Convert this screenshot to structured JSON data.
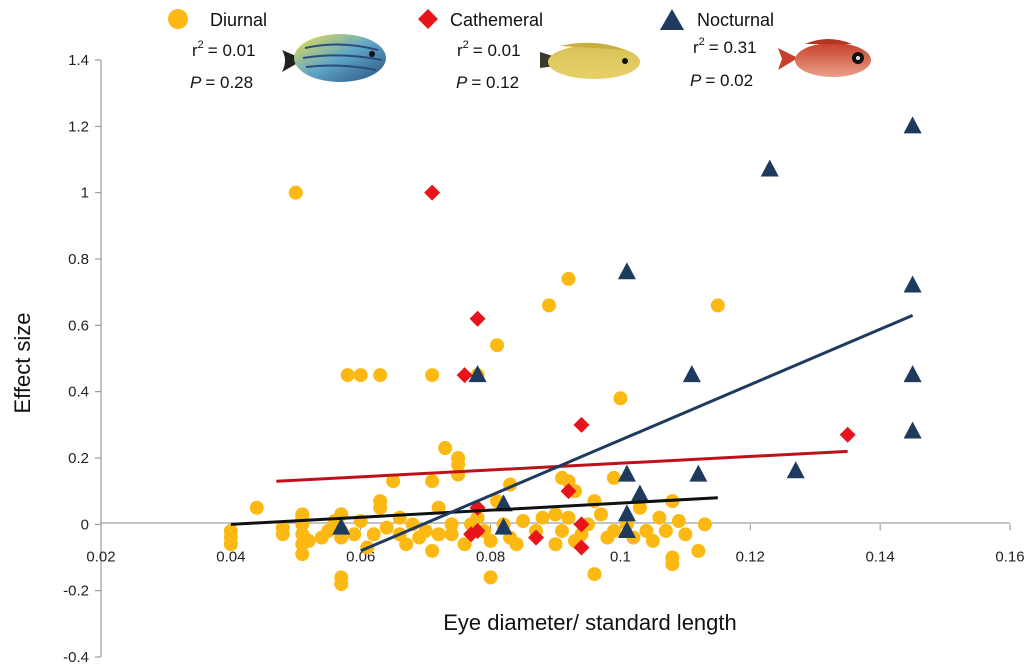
{
  "chart_data": {
    "type": "scatter",
    "xlabel": "Eye diameter/ standard length",
    "ylabel": "Effect size",
    "xlim": [
      0.02,
      0.16
    ],
    "ylim": [
      -0.4,
      1.4
    ],
    "x_ticks": [
      "0.02",
      "0.04",
      "0.06",
      "0.08",
      "0.1",
      "0.12",
      "0.14",
      "0.16"
    ],
    "y_ticks": [
      "-0.4",
      "-0.2",
      "0",
      "0.2",
      "0.4",
      "0.6",
      "0.8",
      "1",
      "1.2",
      "1.4"
    ],
    "grid": false,
    "legend_position": "top",
    "series": [
      {
        "name": "Diurnal",
        "marker": "circle",
        "color": "#FDB913",
        "line_color": "#111111",
        "r2_label": "r",
        "r2_value": "= 0.01",
        "p_label": "P",
        "p_value": "= 0.28",
        "trend": [
          [
            0.04,
            0.0
          ],
          [
            0.115,
            0.08
          ]
        ],
        "points": [
          [
            0.04,
            -0.04
          ],
          [
            0.04,
            -0.06
          ],
          [
            0.04,
            -0.02
          ],
          [
            0.044,
            0.05
          ],
          [
            0.048,
            -0.03
          ],
          [
            0.048,
            -0.01
          ],
          [
            0.05,
            1.0
          ],
          [
            0.051,
            -0.03
          ],
          [
            0.051,
            -0.06
          ],
          [
            0.051,
            -0.09
          ],
          [
            0.051,
            0.0
          ],
          [
            0.051,
            0.02
          ],
          [
            0.051,
            0.03
          ],
          [
            0.052,
            -0.05
          ],
          [
            0.054,
            -0.04
          ],
          [
            0.055,
            -0.02
          ],
          [
            0.056,
            0.01
          ],
          [
            0.057,
            -0.02
          ],
          [
            0.057,
            -0.04
          ],
          [
            0.057,
            0.03
          ],
          [
            0.057,
            -0.16
          ],
          [
            0.057,
            -0.18
          ],
          [
            0.058,
            0.45
          ],
          [
            0.059,
            -0.03
          ],
          [
            0.06,
            0.45
          ],
          [
            0.06,
            0.01
          ],
          [
            0.061,
            -0.07
          ],
          [
            0.062,
            -0.03
          ],
          [
            0.063,
            0.07
          ],
          [
            0.063,
            0.45
          ],
          [
            0.063,
            0.05
          ],
          [
            0.064,
            -0.01
          ],
          [
            0.065,
            0.13
          ],
          [
            0.066,
            -0.03
          ],
          [
            0.066,
            0.02
          ],
          [
            0.067,
            -0.06
          ],
          [
            0.068,
            0.0
          ],
          [
            0.069,
            -0.04
          ],
          [
            0.07,
            -0.02
          ],
          [
            0.071,
            0.45
          ],
          [
            0.071,
            0.13
          ],
          [
            0.071,
            -0.08
          ],
          [
            0.072,
            0.05
          ],
          [
            0.072,
            -0.03
          ],
          [
            0.073,
            0.23
          ],
          [
            0.074,
            0.0
          ],
          [
            0.074,
            -0.03
          ],
          [
            0.075,
            0.2
          ],
          [
            0.075,
            0.18
          ],
          [
            0.075,
            0.15
          ],
          [
            0.076,
            -0.06
          ],
          [
            0.077,
            0.0
          ],
          [
            0.078,
            0.02
          ],
          [
            0.078,
            0.45
          ],
          [
            0.079,
            -0.02
          ],
          [
            0.08,
            -0.05
          ],
          [
            0.08,
            -0.16
          ],
          [
            0.081,
            0.54
          ],
          [
            0.081,
            0.07
          ],
          [
            0.082,
            0.0
          ],
          [
            0.083,
            0.12
          ],
          [
            0.083,
            -0.04
          ],
          [
            0.084,
            -0.06
          ],
          [
            0.085,
            0.01
          ],
          [
            0.087,
            -0.02
          ],
          [
            0.088,
            0.02
          ],
          [
            0.089,
            0.66
          ],
          [
            0.09,
            0.03
          ],
          [
            0.09,
            -0.06
          ],
          [
            0.091,
            0.14
          ],
          [
            0.091,
            -0.02
          ],
          [
            0.092,
            0.74
          ],
          [
            0.092,
            0.13
          ],
          [
            0.092,
            0.02
          ],
          [
            0.093,
            -0.05
          ],
          [
            0.093,
            0.1
          ],
          [
            0.094,
            -0.03
          ],
          [
            0.095,
            0.0
          ],
          [
            0.096,
            -0.15
          ],
          [
            0.096,
            0.07
          ],
          [
            0.097,
            0.03
          ],
          [
            0.098,
            -0.04
          ],
          [
            0.099,
            0.14
          ],
          [
            0.099,
            -0.02
          ],
          [
            0.1,
            0.38
          ],
          [
            0.101,
            0.0
          ],
          [
            0.102,
            -0.04
          ],
          [
            0.103,
            0.05
          ],
          [
            0.104,
            -0.02
          ],
          [
            0.105,
            -0.05
          ],
          [
            0.106,
            0.02
          ],
          [
            0.107,
            -0.02
          ],
          [
            0.108,
            0.07
          ],
          [
            0.108,
            -0.1
          ],
          [
            0.108,
            -0.12
          ],
          [
            0.109,
            0.01
          ],
          [
            0.11,
            -0.03
          ],
          [
            0.112,
            -0.08
          ],
          [
            0.113,
            0.0
          ],
          [
            0.115,
            0.66
          ]
        ]
      },
      {
        "name": "Cathemeral",
        "marker": "diamond",
        "color": "#E8141B",
        "line_color": "#C0111A",
        "r2_label": "r",
        "r2_value": "= 0.01",
        "p_label": "P",
        "p_value": "= 0.12",
        "trend": [
          [
            0.047,
            0.13
          ],
          [
            0.135,
            0.22
          ]
        ],
        "points": [
          [
            0.071,
            1.0
          ],
          [
            0.076,
            0.45
          ],
          [
            0.077,
            -0.03
          ],
          [
            0.078,
            0.62
          ],
          [
            0.078,
            0.05
          ],
          [
            0.078,
            -0.02
          ],
          [
            0.087,
            -0.04
          ],
          [
            0.092,
            0.1
          ],
          [
            0.094,
            0.3
          ],
          [
            0.094,
            0.0
          ],
          [
            0.094,
            -0.07
          ],
          [
            0.135,
            0.27
          ]
        ]
      },
      {
        "name": "Nocturnal",
        "marker": "triangle",
        "color": "#1E3A5F",
        "line_color": "#1E3A5F",
        "r2_label": "r",
        "r2_value": "= 0.31",
        "p_label": "P",
        "p_value": "= 0.02",
        "trend": [
          [
            0.06,
            -0.08
          ],
          [
            0.145,
            0.63
          ]
        ],
        "points": [
          [
            0.057,
            -0.01
          ],
          [
            0.078,
            0.45
          ],
          [
            0.082,
            0.06
          ],
          [
            0.082,
            -0.01
          ],
          [
            0.101,
            0.76
          ],
          [
            0.101,
            0.15
          ],
          [
            0.101,
            0.03
          ],
          [
            0.101,
            -0.02
          ],
          [
            0.103,
            0.09
          ],
          [
            0.111,
            0.45
          ],
          [
            0.112,
            0.15
          ],
          [
            0.123,
            1.07
          ],
          [
            0.127,
            0.16
          ],
          [
            0.145,
            1.2
          ],
          [
            0.145,
            0.72
          ],
          [
            0.145,
            0.45
          ],
          [
            0.145,
            0.28
          ]
        ]
      }
    ]
  }
}
